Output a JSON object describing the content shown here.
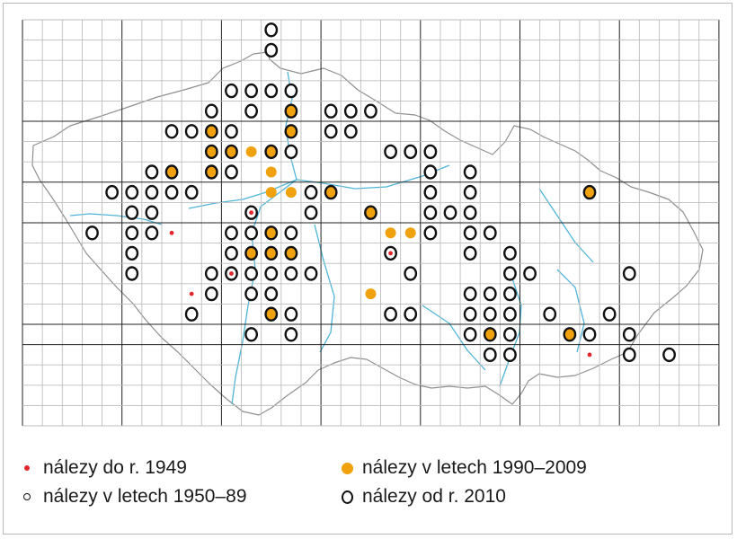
{
  "legend": {
    "pre1949": "nálezy do r. 1949",
    "y1950_89": "nálezy v letech 1950–89",
    "y1990_2009": "nálezy v letech 1990–2009",
    "since2010": "nálezy od r. 2010"
  },
  "colors": {
    "grid": "#bdbdbd",
    "grid_major": "#222222",
    "border": "#8f8f8f",
    "rivers": "#4fb5d8",
    "pre1949": "#e3262c",
    "y1990_2009": "#f0a20e",
    "ring": "#111111"
  },
  "map": {
    "grid_columns": 35,
    "grid_rows": 20,
    "big_cell_columns": 7,
    "big_cell_rows": 4,
    "records": [
      {
        "col": 12,
        "row": 0,
        "type": "ring"
      },
      {
        "col": 12,
        "row": 1,
        "type": "ring"
      },
      {
        "col": 10,
        "row": 3,
        "type": "ring"
      },
      {
        "col": 11,
        "row": 3,
        "type": "ring"
      },
      {
        "col": 12,
        "row": 3,
        "type": "ring"
      },
      {
        "col": 13,
        "row": 3,
        "type": "ring"
      },
      {
        "col": 9,
        "row": 4,
        "type": "ring"
      },
      {
        "col": 11,
        "row": 4,
        "type": "ring"
      },
      {
        "col": 13,
        "row": 4,
        "type": "ring_orange"
      },
      {
        "col": 15,
        "row": 4,
        "type": "ring"
      },
      {
        "col": 16,
        "row": 4,
        "type": "ring"
      },
      {
        "col": 17,
        "row": 4,
        "type": "ring"
      },
      {
        "col": 7,
        "row": 5,
        "type": "ring"
      },
      {
        "col": 8,
        "row": 5,
        "type": "ring"
      },
      {
        "col": 9,
        "row": 5,
        "type": "ring_orange"
      },
      {
        "col": 10,
        "row": 5,
        "type": "ring"
      },
      {
        "col": 13,
        "row": 5,
        "type": "ring_orange"
      },
      {
        "col": 15,
        "row": 5,
        "type": "ring"
      },
      {
        "col": 16,
        "row": 5,
        "type": "ring"
      },
      {
        "col": 9,
        "row": 6,
        "type": "ring_orange"
      },
      {
        "col": 10,
        "row": 6,
        "type": "ring_orange"
      },
      {
        "col": 11,
        "row": 6,
        "type": "orange"
      },
      {
        "col": 12,
        "row": 6,
        "type": "ring_orange"
      },
      {
        "col": 13,
        "row": 6,
        "type": "ring"
      },
      {
        "col": 18,
        "row": 6,
        "type": "ring"
      },
      {
        "col": 19,
        "row": 6,
        "type": "ring"
      },
      {
        "col": 20,
        "row": 6,
        "type": "ring"
      },
      {
        "col": 6,
        "row": 7,
        "type": "ring"
      },
      {
        "col": 7,
        "row": 7,
        "type": "ring_orange"
      },
      {
        "col": 9,
        "row": 7,
        "type": "ring_orange"
      },
      {
        "col": 10,
        "row": 7,
        "type": "ring"
      },
      {
        "col": 12,
        "row": 7,
        "type": "orange"
      },
      {
        "col": 20,
        "row": 7,
        "type": "ring"
      },
      {
        "col": 22,
        "row": 7,
        "type": "ring"
      },
      {
        "col": 4,
        "row": 8,
        "type": "ring"
      },
      {
        "col": 5,
        "row": 8,
        "type": "ring"
      },
      {
        "col": 6,
        "row": 8,
        "type": "ring"
      },
      {
        "col": 7,
        "row": 8,
        "type": "ring"
      },
      {
        "col": 8,
        "row": 8,
        "type": "ring"
      },
      {
        "col": 12,
        "row": 8,
        "type": "orange"
      },
      {
        "col": 13,
        "row": 8,
        "type": "orange"
      },
      {
        "col": 14,
        "row": 8,
        "type": "ring"
      },
      {
        "col": 15,
        "row": 8,
        "type": "ring_orange"
      },
      {
        "col": 20,
        "row": 8,
        "type": "ring"
      },
      {
        "col": 22,
        "row": 8,
        "type": "ring"
      },
      {
        "col": 28,
        "row": 8,
        "type": "ring_orange"
      },
      {
        "col": 5,
        "row": 9,
        "type": "ring"
      },
      {
        "col": 6,
        "row": 9,
        "type": "ring"
      },
      {
        "col": 11,
        "row": 9,
        "type": "ring_red"
      },
      {
        "col": 14,
        "row": 9,
        "type": "ring"
      },
      {
        "col": 17,
        "row": 9,
        "type": "ring_orange"
      },
      {
        "col": 20,
        "row": 9,
        "type": "ring"
      },
      {
        "col": 21,
        "row": 9,
        "type": "ring"
      },
      {
        "col": 22,
        "row": 9,
        "type": "ring"
      },
      {
        "col": 3,
        "row": 10,
        "type": "ring"
      },
      {
        "col": 5,
        "row": 10,
        "type": "ring"
      },
      {
        "col": 6,
        "row": 10,
        "type": "ring"
      },
      {
        "col": 7,
        "row": 10,
        "type": "red"
      },
      {
        "col": 10,
        "row": 10,
        "type": "ring"
      },
      {
        "col": 11,
        "row": 10,
        "type": "ring"
      },
      {
        "col": 12,
        "row": 10,
        "type": "ring_orange"
      },
      {
        "col": 13,
        "row": 10,
        "type": "ring"
      },
      {
        "col": 18,
        "row": 10,
        "type": "orange"
      },
      {
        "col": 19,
        "row": 10,
        "type": "orange"
      },
      {
        "col": 20,
        "row": 10,
        "type": "ring"
      },
      {
        "col": 22,
        "row": 10,
        "type": "ring"
      },
      {
        "col": 23,
        "row": 10,
        "type": "ring"
      },
      {
        "col": 5,
        "row": 11,
        "type": "ring"
      },
      {
        "col": 10,
        "row": 11,
        "type": "ring"
      },
      {
        "col": 11,
        "row": 11,
        "type": "ring_orange"
      },
      {
        "col": 12,
        "row": 11,
        "type": "ring_orange"
      },
      {
        "col": 13,
        "row": 11,
        "type": "ring_orange"
      },
      {
        "col": 18,
        "row": 11,
        "type": "ring_red"
      },
      {
        "col": 22,
        "row": 11,
        "type": "ring"
      },
      {
        "col": 24,
        "row": 11,
        "type": "ring"
      },
      {
        "col": 5,
        "row": 12,
        "type": "ring"
      },
      {
        "col": 9,
        "row": 12,
        "type": "ring"
      },
      {
        "col": 10,
        "row": 12,
        "type": "ring_red"
      },
      {
        "col": 11,
        "row": 12,
        "type": "ring"
      },
      {
        "col": 12,
        "row": 12,
        "type": "ring"
      },
      {
        "col": 13,
        "row": 12,
        "type": "ring"
      },
      {
        "col": 14,
        "row": 12,
        "type": "ring"
      },
      {
        "col": 19,
        "row": 12,
        "type": "ring"
      },
      {
        "col": 24,
        "row": 12,
        "type": "ring"
      },
      {
        "col": 25,
        "row": 12,
        "type": "ring"
      },
      {
        "col": 30,
        "row": 12,
        "type": "ring"
      },
      {
        "col": 8,
        "row": 13,
        "type": "red"
      },
      {
        "col": 9,
        "row": 13,
        "type": "ring"
      },
      {
        "col": 11,
        "row": 13,
        "type": "ring"
      },
      {
        "col": 12,
        "row": 13,
        "type": "ring"
      },
      {
        "col": 17,
        "row": 13,
        "type": "orange"
      },
      {
        "col": 22,
        "row": 13,
        "type": "ring"
      },
      {
        "col": 23,
        "row": 13,
        "type": "ring"
      },
      {
        "col": 24,
        "row": 13,
        "type": "ring"
      },
      {
        "col": 8,
        "row": 14,
        "type": "ring"
      },
      {
        "col": 12,
        "row": 14,
        "type": "ring_orange"
      },
      {
        "col": 13,
        "row": 14,
        "type": "ring"
      },
      {
        "col": 18,
        "row": 14,
        "type": "ring"
      },
      {
        "col": 19,
        "row": 14,
        "type": "ring"
      },
      {
        "col": 22,
        "row": 14,
        "type": "ring"
      },
      {
        "col": 23,
        "row": 14,
        "type": "ring"
      },
      {
        "col": 24,
        "row": 14,
        "type": "ring"
      },
      {
        "col": 26,
        "row": 14,
        "type": "ring"
      },
      {
        "col": 29,
        "row": 14,
        "type": "ring"
      },
      {
        "col": 11,
        "row": 15,
        "type": "ring"
      },
      {
        "col": 13,
        "row": 15,
        "type": "ring"
      },
      {
        "col": 22,
        "row": 15,
        "type": "ring"
      },
      {
        "col": 23,
        "row": 15,
        "type": "ring_orange"
      },
      {
        "col": 24,
        "row": 15,
        "type": "ring"
      },
      {
        "col": 27,
        "row": 15,
        "type": "ring_orange"
      },
      {
        "col": 28,
        "row": 15,
        "type": "ring"
      },
      {
        "col": 30,
        "row": 15,
        "type": "ring"
      },
      {
        "col": 23,
        "row": 16,
        "type": "ring"
      },
      {
        "col": 24,
        "row": 16,
        "type": "ring"
      },
      {
        "col": 28,
        "row": 16,
        "type": "red"
      },
      {
        "col": 30,
        "row": 16,
        "type": "ring"
      },
      {
        "col": 32,
        "row": 16,
        "type": "ring"
      }
    ]
  }
}
